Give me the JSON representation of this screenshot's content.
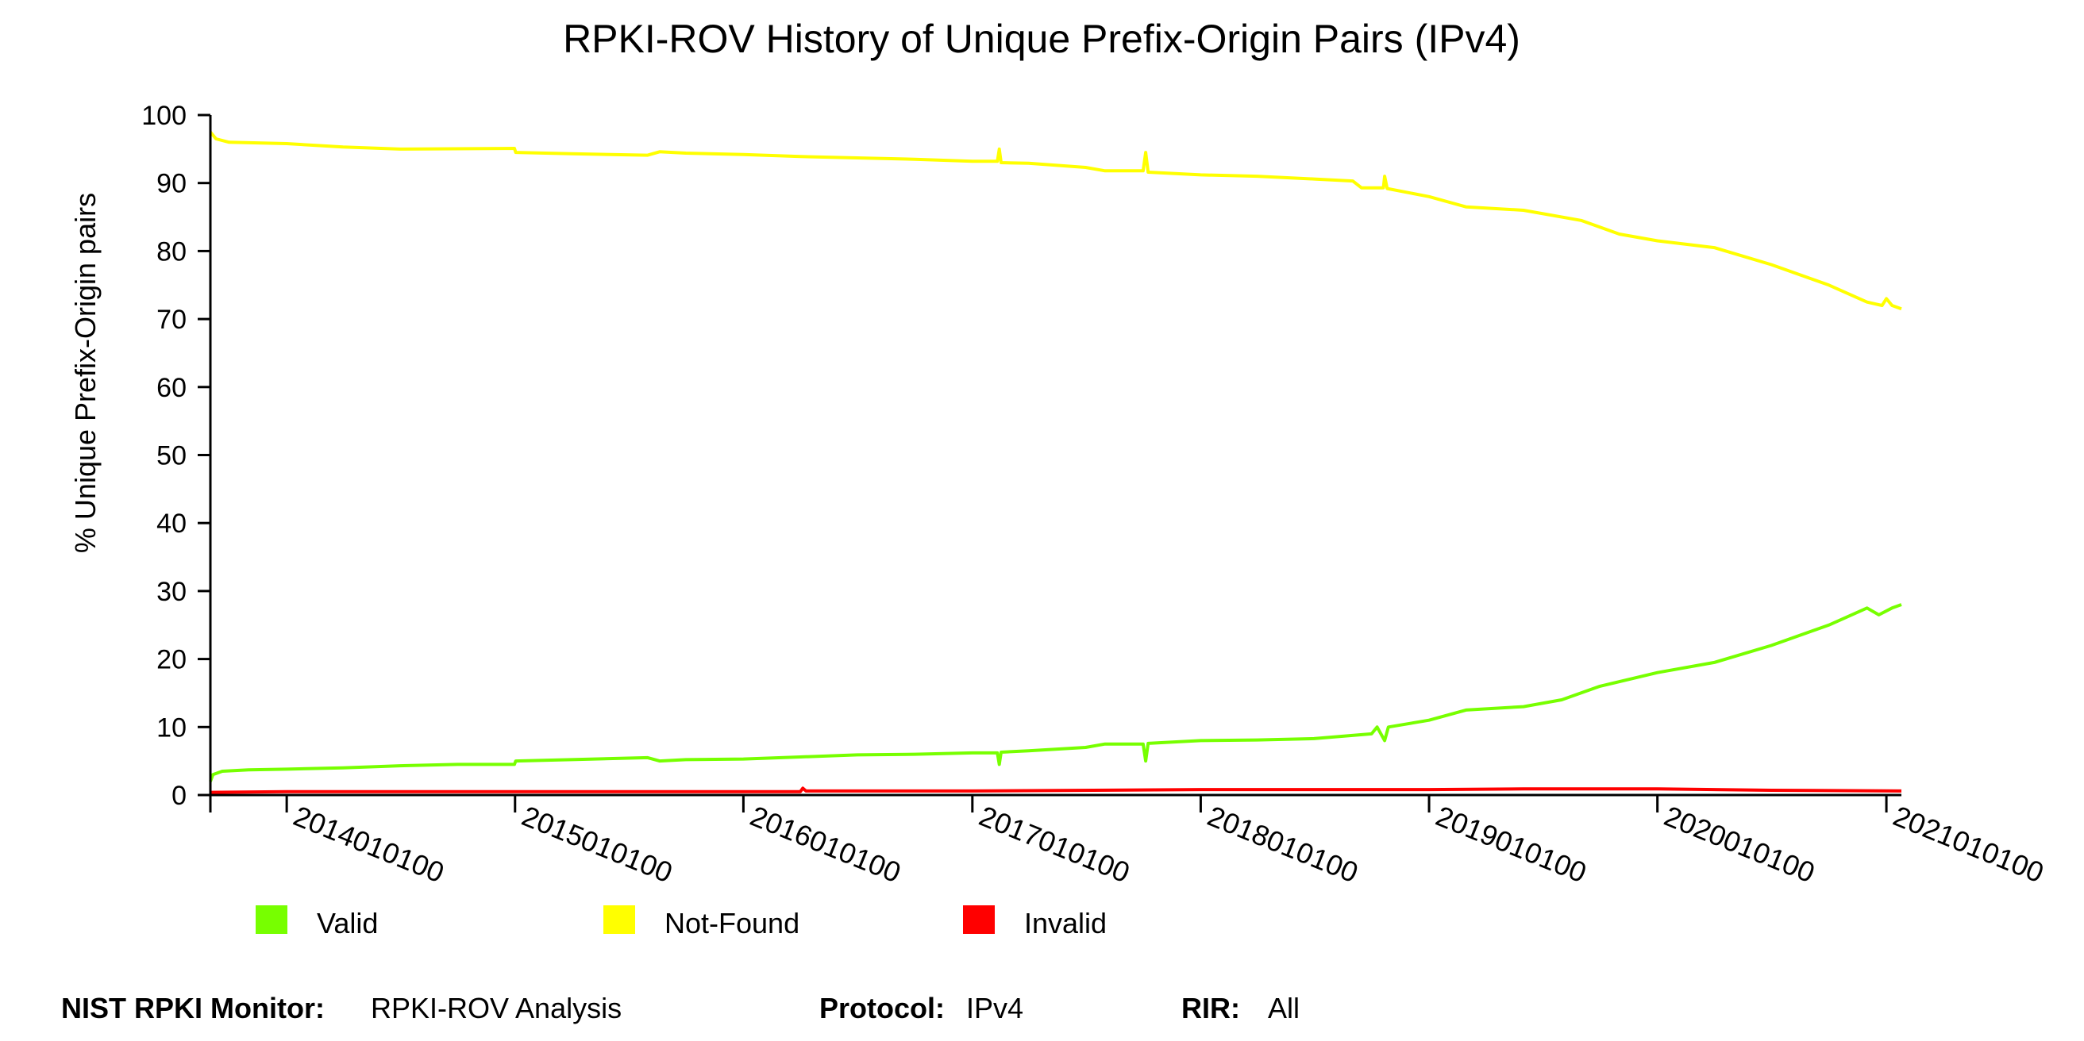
{
  "chart_data": {
    "type": "line",
    "title": "RPKI-ROV History of Unique Prefix-Origin Pairs (IPv4)",
    "xlabel": "",
    "ylabel": "% Unique Prefix-Origin pairs",
    "ylim": [
      0,
      100
    ],
    "xlim": [
      "2013-09-01",
      "2021-01-25"
    ],
    "yticks": [
      "0",
      "10",
      "20",
      "30",
      "40",
      "50",
      "60",
      "70",
      "80",
      "90",
      "100"
    ],
    "xticks": [
      {
        "label": "2014010100",
        "date": "2014-01-01"
      },
      {
        "label": "2015010100",
        "date": "2015-01-01"
      },
      {
        "label": "2016010100",
        "date": "2016-01-01"
      },
      {
        "label": "2017010100",
        "date": "2017-01-01"
      },
      {
        "label": "2018010100",
        "date": "2018-01-01"
      },
      {
        "label": "2019010100",
        "date": "2019-01-01"
      },
      {
        "label": "2020010100",
        "date": "2020-01-01"
      },
      {
        "label": "2021010100",
        "date": "2021-01-01"
      }
    ],
    "grid": false,
    "legend_position": "bottom-left",
    "series": [
      {
        "name": "Valid",
        "color": "#77ff00",
        "points": [
          [
            "2013-09-01",
            2.0
          ],
          [
            "2013-09-05",
            3.0
          ],
          [
            "2013-09-20",
            3.5
          ],
          [
            "2013-11-01",
            3.7
          ],
          [
            "2014-01-01",
            3.8
          ],
          [
            "2014-04-01",
            4.0
          ],
          [
            "2014-07-01",
            4.3
          ],
          [
            "2014-10-01",
            4.5
          ],
          [
            "2014-12-31",
            4.5
          ],
          [
            "2015-01-02",
            5.0
          ],
          [
            "2015-04-01",
            5.2
          ],
          [
            "2015-08-01",
            5.5
          ],
          [
            "2015-08-20",
            5.0
          ],
          [
            "2015-10-01",
            5.2
          ],
          [
            "2016-01-01",
            5.3
          ],
          [
            "2016-04-01",
            5.6
          ],
          [
            "2016-07-01",
            5.9
          ],
          [
            "2016-10-01",
            6.0
          ],
          [
            "2017-01-01",
            6.2
          ],
          [
            "2017-02-10",
            6.2
          ],
          [
            "2017-02-13",
            4.5
          ],
          [
            "2017-02-16",
            6.3
          ],
          [
            "2017-04-01",
            6.5
          ],
          [
            "2017-07-01",
            7.0
          ],
          [
            "2017-08-01",
            7.5
          ],
          [
            "2017-10-01",
            7.5
          ],
          [
            "2017-10-05",
            5.0
          ],
          [
            "2017-10-09",
            7.6
          ],
          [
            "2018-01-01",
            8.0
          ],
          [
            "2018-04-01",
            8.1
          ],
          [
            "2018-07-01",
            8.3
          ],
          [
            "2018-10-01",
            9.0
          ],
          [
            "2018-10-10",
            10.0
          ],
          [
            "2018-10-22",
            8.0
          ],
          [
            "2018-10-28",
            10.0
          ],
          [
            "2019-01-01",
            11.0
          ],
          [
            "2019-03-01",
            12.5
          ],
          [
            "2019-06-01",
            13.0
          ],
          [
            "2019-08-01",
            14.0
          ],
          [
            "2019-10-01",
            16.0
          ],
          [
            "2020-01-01",
            18.0
          ],
          [
            "2020-04-01",
            19.5
          ],
          [
            "2020-07-01",
            22.0
          ],
          [
            "2020-10-01",
            25.0
          ],
          [
            "2020-12-01",
            27.5
          ],
          [
            "2020-12-20",
            26.5
          ],
          [
            "2021-01-10",
            27.5
          ],
          [
            "2021-01-25",
            28.0
          ]
        ]
      },
      {
        "name": "Not-Found",
        "color": "#ffff00",
        "points": [
          [
            "2013-09-01",
            97.5
          ],
          [
            "2013-09-10",
            96.5
          ],
          [
            "2013-10-01",
            96.0
          ],
          [
            "2014-01-01",
            95.8
          ],
          [
            "2014-04-01",
            95.3
          ],
          [
            "2014-07-01",
            95.0
          ],
          [
            "2014-12-31",
            95.1
          ],
          [
            "2015-01-02",
            94.5
          ],
          [
            "2015-04-01",
            94.3
          ],
          [
            "2015-08-01",
            94.1
          ],
          [
            "2015-08-20",
            94.6
          ],
          [
            "2015-10-01",
            94.4
          ],
          [
            "2016-01-01",
            94.2
          ],
          [
            "2016-04-01",
            93.9
          ],
          [
            "2016-07-01",
            93.7
          ],
          [
            "2016-10-01",
            93.5
          ],
          [
            "2017-01-01",
            93.2
          ],
          [
            "2017-02-10",
            93.2
          ],
          [
            "2017-02-13",
            95.0
          ],
          [
            "2017-02-16",
            93.0
          ],
          [
            "2017-04-01",
            92.9
          ],
          [
            "2017-07-01",
            92.3
          ],
          [
            "2017-08-01",
            91.8
          ],
          [
            "2017-10-01",
            91.8
          ],
          [
            "2017-10-05",
            94.5
          ],
          [
            "2017-10-09",
            91.6
          ],
          [
            "2018-01-01",
            91.2
          ],
          [
            "2018-04-01",
            91.0
          ],
          [
            "2018-07-01",
            90.6
          ],
          [
            "2018-09-01",
            90.3
          ],
          [
            "2018-09-15",
            89.3
          ],
          [
            "2018-10-20",
            89.3
          ],
          [
            "2018-10-22",
            91.0
          ],
          [
            "2018-10-26",
            89.2
          ],
          [
            "2019-01-01",
            88.0
          ],
          [
            "2019-03-01",
            86.5
          ],
          [
            "2019-06-01",
            86.0
          ],
          [
            "2019-09-01",
            84.5
          ],
          [
            "2019-11-01",
            82.5
          ],
          [
            "2020-01-01",
            81.5
          ],
          [
            "2020-04-01",
            80.5
          ],
          [
            "2020-07-01",
            78.0
          ],
          [
            "2020-10-01",
            75.0
          ],
          [
            "2020-12-01",
            72.5
          ],
          [
            "2020-12-25",
            72.0
          ],
          [
            "2021-01-01",
            73.0
          ],
          [
            "2021-01-10",
            72.0
          ],
          [
            "2021-01-25",
            71.5
          ]
        ]
      },
      {
        "name": "Invalid",
        "color": "#ff0000",
        "points": [
          [
            "2013-09-01",
            0.4
          ],
          [
            "2014-01-01",
            0.5
          ],
          [
            "2015-01-01",
            0.5
          ],
          [
            "2016-01-01",
            0.5
          ],
          [
            "2016-04-01",
            0.5
          ],
          [
            "2016-04-05",
            1.0
          ],
          [
            "2016-04-10",
            0.6
          ],
          [
            "2017-01-01",
            0.6
          ],
          [
            "2018-01-01",
            0.8
          ],
          [
            "2019-01-01",
            0.8
          ],
          [
            "2019-06-01",
            0.9
          ],
          [
            "2020-01-01",
            0.9
          ],
          [
            "2020-07-01",
            0.7
          ],
          [
            "2021-01-25",
            0.6
          ]
        ]
      }
    ]
  },
  "footer": {
    "monitor_label": "NIST RPKI Monitor:",
    "monitor_value": "RPKI-ROV Analysis",
    "protocol_label": "Protocol:",
    "protocol_value": "IPv4",
    "rir_label": "RIR:",
    "rir_value": "All"
  }
}
